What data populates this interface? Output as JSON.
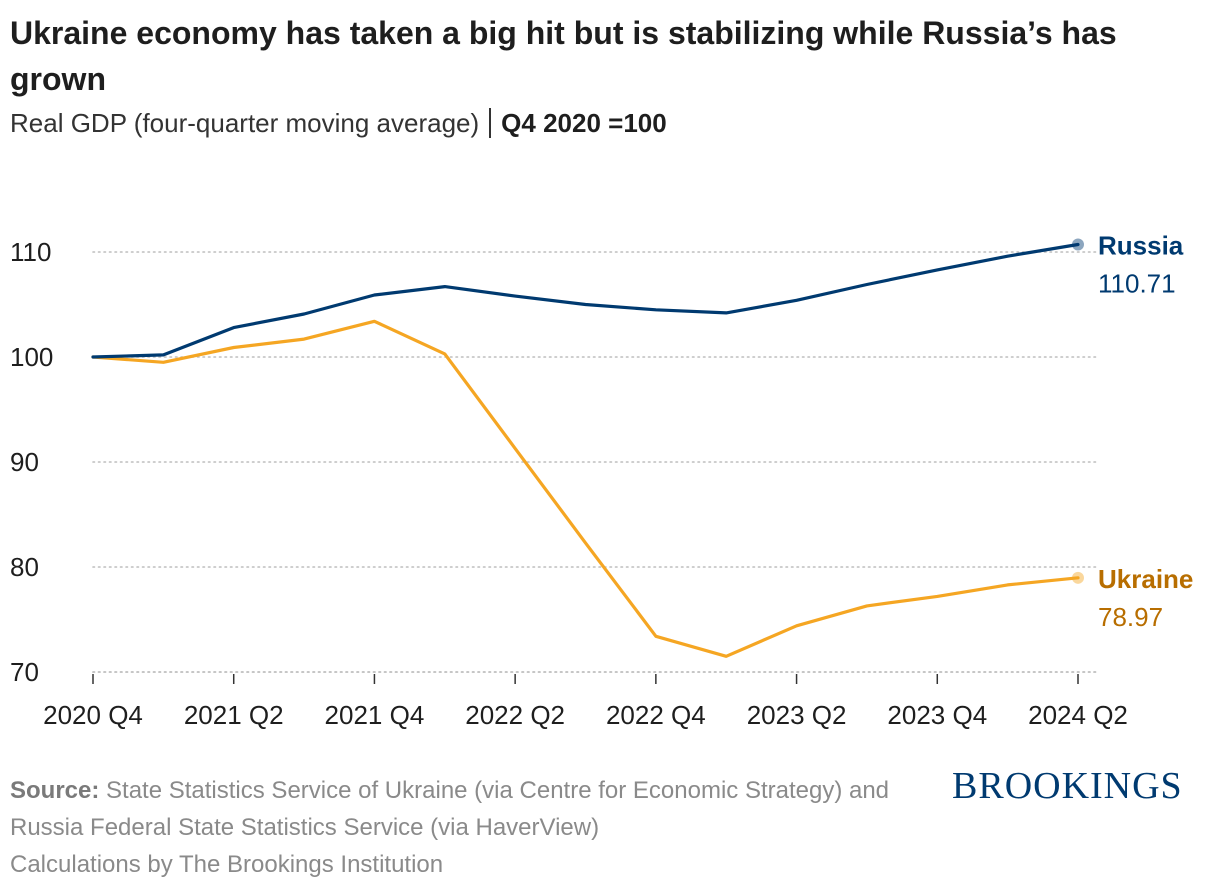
{
  "header": {
    "title": "Ukraine economy has taken a big hit but is stabilizing while Russia’s has grown",
    "subtitle_main": "Real GDP (four-quarter moving average)",
    "subtitle_bold": "Q4 2020 =100"
  },
  "footer": {
    "source_label": "Source:",
    "source_text": "State Statistics Service of Ukraine (via Centre for Economic Strategy) and Russia Federal State Statistics Service (via HaverView)",
    "calc_text": "Calculations by The Brookings Institution",
    "logo_text": "BROOKINGS"
  },
  "chart_data": {
    "type": "line",
    "x": [
      "2020 Q4",
      "2021 Q1",
      "2021 Q2",
      "2021 Q3",
      "2021 Q4",
      "2022 Q1",
      "2022 Q2",
      "2022 Q3",
      "2022 Q4",
      "2023 Q1",
      "2023 Q2",
      "2023 Q3",
      "2023 Q4",
      "2024 Q1",
      "2024 Q2"
    ],
    "x_tick_labels": [
      "2020 Q4",
      "2021 Q2",
      "2021 Q4",
      "2022 Q2",
      "2022 Q4",
      "2023 Q2",
      "2023 Q4",
      "2024 Q2"
    ],
    "y_ticks": [
      70,
      80,
      90,
      100,
      110
    ],
    "ylim": [
      70,
      112
    ],
    "grid": "horizontal dotted",
    "series": [
      {
        "name": "Russia",
        "end_label": "110.71",
        "color": "#003a70",
        "values": [
          100,
          100.2,
          102.8,
          104.1,
          105.9,
          106.7,
          105.8,
          105.0,
          104.5,
          104.2,
          105.4,
          106.9,
          108.3,
          109.6,
          110.71
        ]
      },
      {
        "name": "Ukraine",
        "end_label": "78.97",
        "color": "#f5a623",
        "label_color": "#b86e00",
        "values": [
          100,
          99.5,
          100.9,
          101.7,
          103.4,
          100.3,
          91.3,
          82.3,
          73.4,
          71.5,
          74.4,
          76.3,
          77.2,
          78.3,
          78.97
        ]
      }
    ]
  }
}
